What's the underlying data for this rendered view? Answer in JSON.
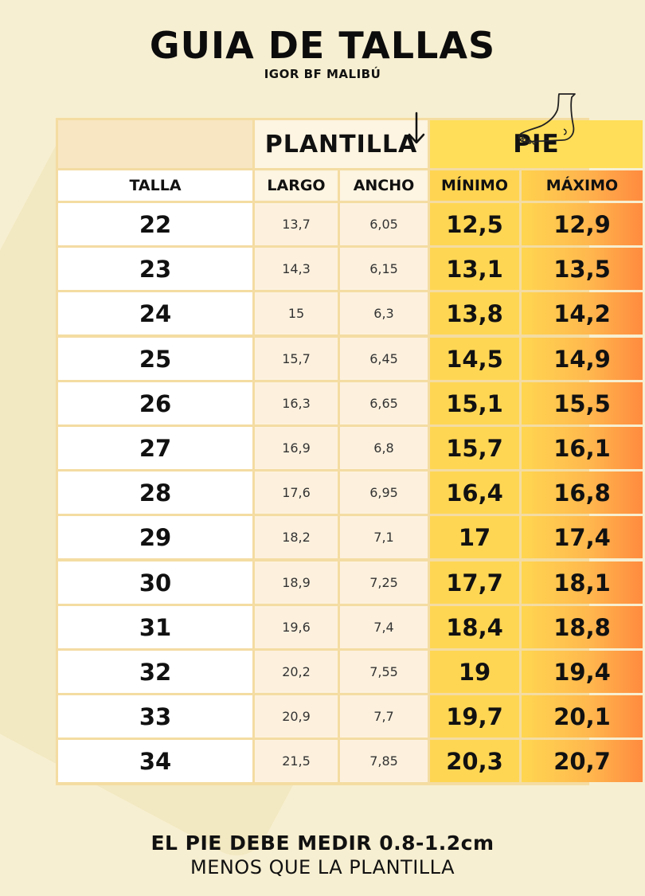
{
  "title": "GUIA DE TALLAS",
  "subtitle": "IGOR BF MALIBÚ",
  "headers": {
    "plantilla": "PLANTILLA",
    "pie": "PIE",
    "talla": "TALLA",
    "largo": "LARGO",
    "ancho": "ANCHO",
    "minimo": "MÍNIMO",
    "maximo": "MÁXIMO"
  },
  "icons": {
    "arrow": "down-arrow-icon",
    "foot": "foot-icon"
  },
  "colors": {
    "background": "#f7efd1",
    "pie_header": "#ffde59",
    "gradient_end": "#ff8b3f"
  },
  "rows": [
    {
      "talla": "22",
      "largo": "13,7",
      "ancho": "6,05",
      "minimo": "12,5",
      "maximo": "12,9"
    },
    {
      "talla": "23",
      "largo": "14,3",
      "ancho": "6,15",
      "minimo": "13,1",
      "maximo": "13,5"
    },
    {
      "talla": "24",
      "largo": "15",
      "ancho": "6,3",
      "minimo": "13,8",
      "maximo": "14,2"
    },
    {
      "talla": "25",
      "largo": "15,7",
      "ancho": "6,45",
      "minimo": "14,5",
      "maximo": "14,9"
    },
    {
      "talla": "26",
      "largo": "16,3",
      "ancho": "6,65",
      "minimo": "15,1",
      "maximo": "15,5"
    },
    {
      "talla": "27",
      "largo": "16,9",
      "ancho": "6,8",
      "minimo": "15,7",
      "maximo": "16,1"
    },
    {
      "talla": "28",
      "largo": "17,6",
      "ancho": "6,95",
      "minimo": "16,4",
      "maximo": "16,8"
    },
    {
      "talla": "29",
      "largo": "18,2",
      "ancho": "7,1",
      "minimo": "17",
      "maximo": "17,4"
    },
    {
      "talla": "30",
      "largo": "18,9",
      "ancho": "7,25",
      "minimo": "17,7",
      "maximo": "18,1"
    },
    {
      "talla": "31",
      "largo": "19,6",
      "ancho": "7,4",
      "minimo": "18,4",
      "maximo": "18,8"
    },
    {
      "talla": "32",
      "largo": "20,2",
      "ancho": "7,55",
      "minimo": "19",
      "maximo": "19,4"
    },
    {
      "talla": "33",
      "largo": "20,9",
      "ancho": "7,7",
      "minimo": "19,7",
      "maximo": "20,1"
    },
    {
      "talla": "34",
      "largo": "21,5",
      "ancho": "7,85",
      "minimo": "20,3",
      "maximo": "20,7"
    }
  ],
  "footer": {
    "line1": "EL PIE DEBE MEDIR 0.8-1.2cm",
    "line2": "MENOS QUE LA PLANTILLA"
  }
}
